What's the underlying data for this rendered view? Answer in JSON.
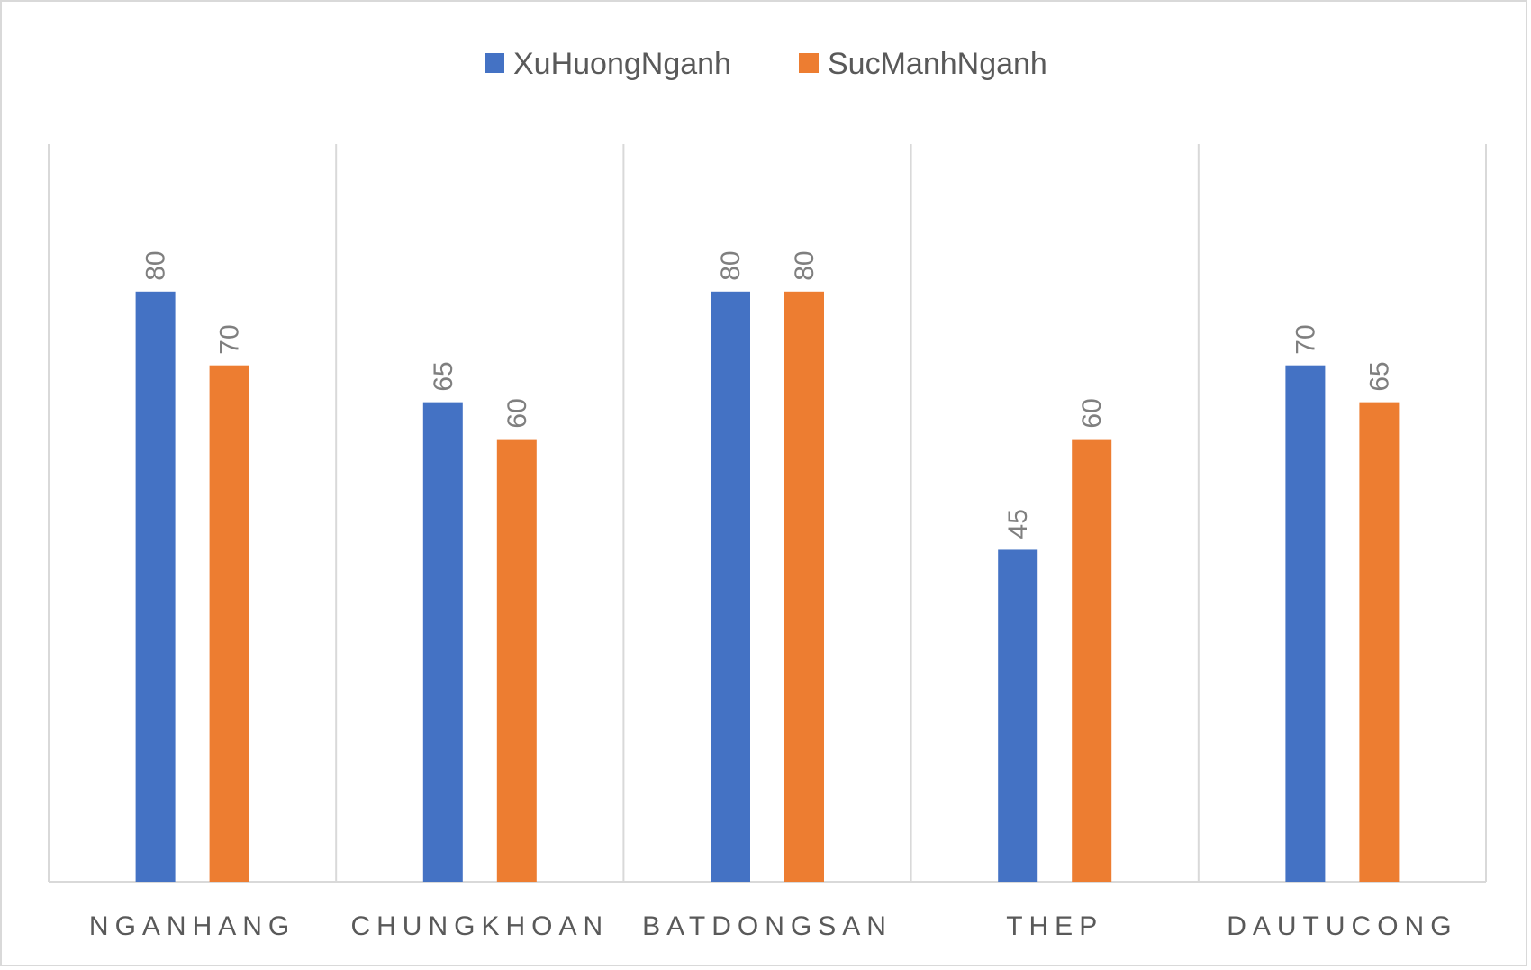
{
  "chart_data": {
    "type": "bar",
    "categories": [
      "NGANHANG",
      "CHUNGKHOAN",
      "BATDONGSAN",
      "THEP",
      "DAUTUCONG"
    ],
    "series": [
      {
        "name": "XuHuongNganh",
        "values": [
          80,
          65,
          80,
          45,
          70
        ],
        "color": "#4472C4"
      },
      {
        "name": "SucManhNganh",
        "values": [
          70,
          60,
          80,
          60,
          65
        ],
        "color": "#ED7D31"
      }
    ],
    "title": "",
    "xlabel": "",
    "ylabel": "",
    "ylim": [
      0,
      100
    ],
    "grid": "vertical category separators",
    "legend": "top-center",
    "data_labels": "rotated, above bars"
  }
}
